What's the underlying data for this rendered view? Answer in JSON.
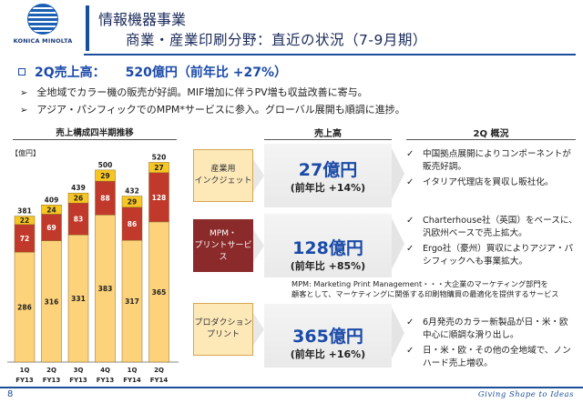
{
  "brand": {
    "logo_text": "KONICA MINOLTA",
    "tagline": "Giving Shape to Ideas"
  },
  "header": {
    "title": "情報機器事業",
    "subtitle": "商業・産業印刷分野：直近の状況（7-9月期）"
  },
  "headline": {
    "label": "2Q売上高：",
    "amount": "520億円（前年比 +27%）"
  },
  "bullets": [
    "全地域でカラー機の販売が好調。MIF増加に伴うPV増も収益改善に寄与。",
    "アジア・パシフィックでのMPM*サービスに参入。グローバル展開も順調に進捗。"
  ],
  "chart_data": {
    "type": "bar",
    "stacked": true,
    "title": "売上構成四半期推移",
    "unit": "【億円】",
    "categories": [
      {
        "q": "1Q",
        "fy": "FY13"
      },
      {
        "q": "2Q",
        "fy": "FY13"
      },
      {
        "q": "3Q",
        "fy": "FY13"
      },
      {
        "q": "4Q",
        "fy": "FY13"
      },
      {
        "q": "1Q",
        "fy": "FY14"
      },
      {
        "q": "2Q",
        "fy": "FY14"
      }
    ],
    "series": [
      {
        "values": [
          286,
          316,
          331,
          383,
          317,
          365
        ],
        "color": "#fcd27a"
      },
      {
        "values": [
          72,
          69,
          83,
          88,
          86,
          128
        ],
        "color": "#c0392b"
      },
      {
        "values": [
          22,
          24,
          26,
          29,
          29,
          27
        ],
        "color": "#f7c623"
      }
    ],
    "totals": [
      381,
      409,
      439,
      500,
      432,
      520
    ],
    "ylim": [
      0,
      540
    ]
  },
  "columns": {
    "sales_header": "売上高",
    "overview_header": "2Q 概況"
  },
  "segments": [
    {
      "box_lines": [
        "産業用",
        "インクジェット"
      ],
      "sales": "27億円",
      "yoy": "(前年比 +14%)",
      "notes": [
        "中国拠点展開によりコンポーネントが販売好調。",
        "イタリア代理店を買収し販社化。"
      ]
    },
    {
      "box_lines": [
        "MPM・",
        "プリントサービス"
      ],
      "sales": "128億円",
      "yoy": "(前年比 +85%)",
      "notes": [
        "Charterhouse社（英国）をベースに、汎欧州ベースで売上拡大。",
        "Ergo社（豪州）買収によりアジア・パシフィックへも事業拡大。"
      ]
    },
    {
      "box_lines": [
        "プロダクション",
        "プリント"
      ],
      "sales": "365億円",
      "yoy": "(前年比 +16%)",
      "notes": [
        "6月発売のカラー新製品が日・米・欧中心に順調な滑り出し。",
        "日・米・欧・その他の全地域で、ノンハード売上増収。"
      ]
    }
  ],
  "mpm_note": {
    "line1": "MPM: Marketing Print Management・・・大企業のマーケティング部門を",
    "line2": "顧客として、マーケティングに関係する印刷物購買の最適化を提供するサービス"
  },
  "footer": {
    "page": "8"
  }
}
